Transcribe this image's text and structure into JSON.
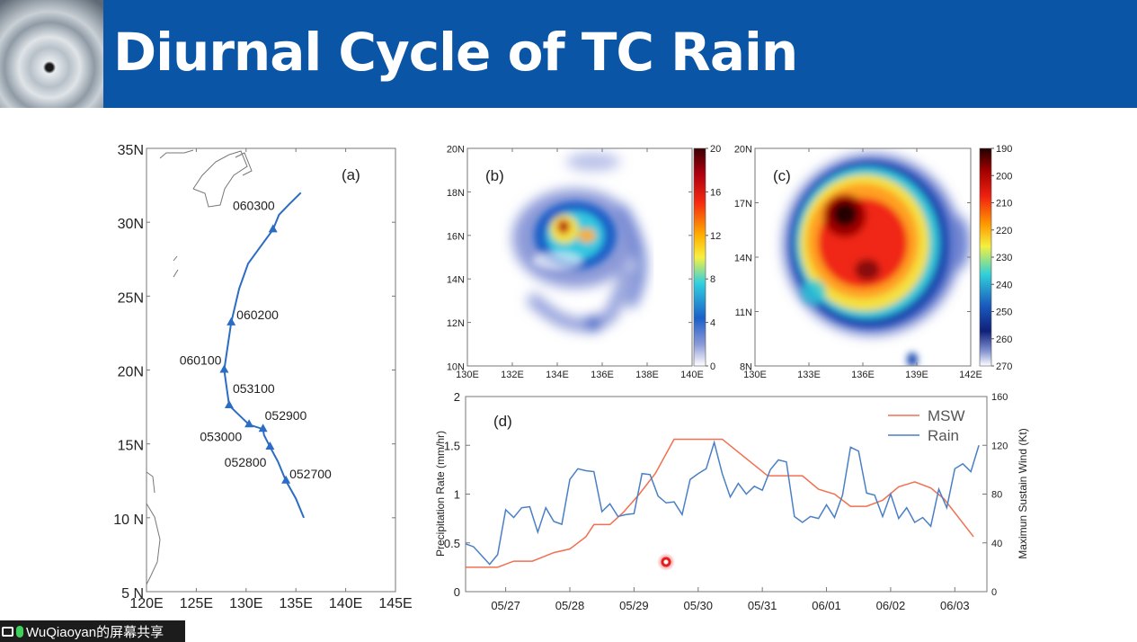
{
  "slide": {
    "title": "Diurnal Cycle of TC Rain",
    "accent": "#0a55a5"
  },
  "screen_share": {
    "label": "WuQiaoyan的屏幕共享",
    "icons": [
      "screen-share-icon",
      "microphone-icon"
    ]
  },
  "chart_data": [
    {
      "panel": "(a)",
      "type": "line",
      "map": true,
      "xlim": [
        120,
        145
      ],
      "ylim": [
        5,
        35
      ],
      "xticks": [
        "120E",
        "125E",
        "130E",
        "135E",
        "140E",
        "145E"
      ],
      "yticks": [
        "5 N",
        "10 N",
        "15N",
        "20N",
        "25N",
        "30N",
        "35N"
      ],
      "track": [
        [
          135.8,
          10
        ],
        [
          135,
          11.3
        ],
        [
          134,
          12.5
        ],
        [
          133.2,
          13.8
        ],
        [
          132.4,
          14.8
        ],
        [
          131.8,
          15.6
        ],
        [
          131.7,
          16
        ],
        [
          130.3,
          16.3
        ],
        [
          128.3,
          17.6
        ],
        [
          127.8,
          20
        ],
        [
          128.5,
          23.2
        ],
        [
          129.3,
          25.5
        ],
        [
          130.2,
          27.2
        ],
        [
          131.5,
          28.4
        ],
        [
          132.7,
          29.5
        ],
        [
          133.3,
          30.5
        ],
        [
          134.3,
          31.2
        ],
        [
          135.5,
          32
        ]
      ],
      "markers": [
        {
          "label": "052700",
          "lon": 134,
          "lat": 12.5
        },
        {
          "label": "052800",
          "lon": 132.4,
          "lat": 14.8
        },
        {
          "label": "052900",
          "lon": 131.7,
          "lat": 16
        },
        {
          "label": "053000",
          "lon": 130.3,
          "lat": 16.3
        },
        {
          "label": "053100",
          "lon": 128.3,
          "lat": 17.6
        },
        {
          "label": "060100",
          "lon": 127.8,
          "lat": 20
        },
        {
          "label": "060200",
          "lon": 128.5,
          "lat": 23.2
        },
        {
          "label": "060300",
          "lon": 132.7,
          "lat": 29.5
        }
      ],
      "color": "#2b6cc4"
    },
    {
      "panel": "(b)",
      "type": "heatmap",
      "xlim": [
        130,
        140
      ],
      "ylim": [
        10,
        20
      ],
      "xticks": [
        "130E",
        "132E",
        "134E",
        "136E",
        "138E",
        "140E"
      ],
      "yticks": [
        "10N",
        "12N",
        "14N",
        "16N",
        "18N",
        "20N"
      ],
      "colorbar": {
        "ticks": [
          "20",
          "16",
          "12",
          "8",
          "4",
          "0"
        ],
        "range": [
          0,
          20
        ]
      }
    },
    {
      "panel": "(c)",
      "type": "heatmap",
      "xlim": [
        130,
        142
      ],
      "ylim": [
        8,
        20
      ],
      "xticks": [
        "130E",
        "133E",
        "136E",
        "139E",
        "142E"
      ],
      "yticks": [
        "8N",
        "11N",
        "14N",
        "17N",
        "20N"
      ],
      "colorbar": {
        "ticks": [
          "190",
          "200",
          "210",
          "220",
          "230",
          "240",
          "250",
          "260",
          "270"
        ],
        "range": [
          190,
          270
        ]
      }
    },
    {
      "panel": "(d)",
      "type": "line",
      "ylabel": "Precipitation Rate (mm/hr)",
      "y2label": "Maximun Sustain Wind (Kt)",
      "ylim": [
        0,
        2
      ],
      "y2lim": [
        0,
        160
      ],
      "yticks": [
        "0",
        "0.5",
        "1",
        "1.5",
        "2"
      ],
      "y2ticks": [
        "0",
        "40",
        "80",
        "120",
        "160"
      ],
      "xlim": [
        "05/26 09",
        "06/03 12"
      ],
      "xticks": [
        "05/27",
        "05/28",
        "05/29",
        "05/30",
        "05/31",
        "06/01",
        "06/02",
        "06/03"
      ],
      "legend": "top-right",
      "series": [
        {
          "name": "MSW",
          "color": "#f07050",
          "axis": "right",
          "points": [
            [
              "05/26 09",
              20
            ],
            [
              "05/26 21",
              20
            ],
            [
              "05/27 03",
              25
            ],
            [
              "05/27 10",
              25
            ],
            [
              "05/27 18",
              32
            ],
            [
              "05/28 00",
              35
            ],
            [
              "05/28 06",
              45
            ],
            [
              "05/28 09",
              55
            ],
            [
              "05/28 15",
              55
            ],
            [
              "05/28 20",
              65
            ],
            [
              "05/29 02",
              80
            ],
            [
              "05/29 08",
              97
            ],
            [
              "05/29 15",
              125
            ],
            [
              "05/30 09",
              125
            ],
            [
              "05/31 02",
              95
            ],
            [
              "05/31 15",
              95
            ],
            [
              "05/31 21",
              84
            ],
            [
              "06/01 03",
              80
            ],
            [
              "06/01 09",
              70
            ],
            [
              "06/01 15",
              70
            ],
            [
              "06/01 21",
              75
            ],
            [
              "06/02 03",
              86
            ],
            [
              "06/02 09",
              90
            ],
            [
              "06/02 15",
              85
            ],
            [
              "06/02 20",
              76
            ],
            [
              "06/03 07",
              45
            ]
          ]
        },
        {
          "name": "Rain",
          "color": "#4a7fc6",
          "axis": "left",
          "points": [
            [
              "05/26 09",
              0.49
            ],
            [
              "05/26 12",
              0.46
            ],
            [
              "05/26 15",
              0.37
            ],
            [
              "05/26 18",
              0.28
            ],
            [
              "05/26 21",
              0.38
            ],
            [
              "05/27 00",
              0.84
            ],
            [
              "05/27 03",
              0.76
            ],
            [
              "05/27 06",
              0.86
            ],
            [
              "05/27 09",
              0.87
            ],
            [
              "05/27 12",
              0.61
            ],
            [
              "05/27 15",
              0.86
            ],
            [
              "05/27 18",
              0.72
            ],
            [
              "05/27 21",
              0.69
            ],
            [
              "05/28 00",
              1.15
            ],
            [
              "05/28 03",
              1.26
            ],
            [
              "05/28 06",
              1.24
            ],
            [
              "05/28 09",
              1.23
            ],
            [
              "05/28 12",
              0.82
            ],
            [
              "05/28 15",
              0.9
            ],
            [
              "05/28 18",
              0.77
            ],
            [
              "05/28 21",
              0.79
            ],
            [
              "05/29 00",
              0.8
            ],
            [
              "05/29 03",
              1.21
            ],
            [
              "05/29 06",
              1.2
            ],
            [
              "05/29 09",
              0.98
            ],
            [
              "05/29 12",
              0.91
            ],
            [
              "05/29 15",
              0.92
            ],
            [
              "05/29 18",
              0.79
            ],
            [
              "05/29 21",
              1.15
            ],
            [
              "05/30 00",
              1.21
            ],
            [
              "05/30 03",
              1.26
            ],
            [
              "05/30 06",
              1.53
            ],
            [
              "05/30 09",
              1.21
            ],
            [
              "05/30 12",
              0.97
            ],
            [
              "05/30 15",
              1.11
            ],
            [
              "05/30 18",
              1.0
            ],
            [
              "05/30 21",
              1.08
            ],
            [
              "05/31 00",
              1.04
            ],
            [
              "05/31 03",
              1.25
            ],
            [
              "05/31 06",
              1.35
            ],
            [
              "05/31 09",
              1.33
            ],
            [
              "05/31 12",
              0.77
            ],
            [
              "05/31 15",
              0.71
            ],
            [
              "05/31 18",
              0.77
            ],
            [
              "05/31 21",
              0.75
            ],
            [
              "06/01 00",
              0.89
            ],
            [
              "06/01 03",
              0.76
            ],
            [
              "06/01 06",
              0.99
            ],
            [
              "06/01 09",
              1.48
            ],
            [
              "06/01 12",
              1.44
            ],
            [
              "06/01 15",
              1.01
            ],
            [
              "06/01 18",
              0.99
            ],
            [
              "06/01 21",
              0.77
            ],
            [
              "06/02 00",
              1.0
            ],
            [
              "06/02 03",
              0.75
            ],
            [
              "06/02 06",
              0.86
            ],
            [
              "06/02 09",
              0.71
            ],
            [
              "06/02 12",
              0.76
            ],
            [
              "06/02 15",
              0.67
            ],
            [
              "06/02 18",
              1.05
            ],
            [
              "06/02 21",
              0.86
            ],
            [
              "06/03 00",
              1.26
            ],
            [
              "06/03 03",
              1.31
            ],
            [
              "06/03 06",
              1.23
            ],
            [
              "06/03 09",
              1.5
            ]
          ]
        }
      ]
    }
  ]
}
